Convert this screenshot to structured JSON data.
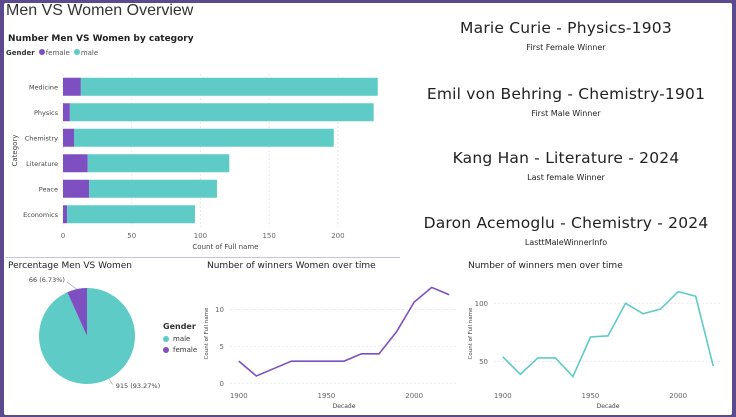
{
  "dashboard": {
    "title": "Men VS Women Overview"
  },
  "colors": {
    "female": "#7e4fc0",
    "male": "#5fcbc6",
    "background": "#5b4a8e"
  },
  "kpis": [
    {
      "value": "Marie Curie - Physics-1903",
      "label": "First Female Winner"
    },
    {
      "value": "Emil von Behring - Chemistry-1901",
      "label": "First Male Winner"
    },
    {
      "value": "Kang Han - Literature - 2024",
      "label": "Last female Winner"
    },
    {
      "value": "Daron Acemoglu - Chemistry - 2024",
      "label": "LasttMaleWinnerInfo"
    }
  ],
  "chart_data": [
    {
      "type": "bar",
      "orientation": "horizontal",
      "stacked": true,
      "title": "Number Men VS Women by category",
      "legend_title": "Gender",
      "legend_position": "top-left",
      "categories": [
        "Medicine",
        "Physics",
        "Chemistry",
        "Literature",
        "Peace",
        "Economics"
      ],
      "series": [
        {
          "name": "female",
          "values": [
            13,
            5,
            8,
            18,
            19,
            3
          ]
        },
        {
          "name": "male",
          "values": [
            216,
            221,
            189,
            103,
            93,
            93
          ]
        }
      ],
      "xlabel": "Count of Full name",
      "ylabel": "Category",
      "xlim": [
        0,
        235
      ],
      "xticks": [
        0,
        50,
        100,
        150,
        200
      ],
      "grid": true
    },
    {
      "type": "pie",
      "title": "Percentage Men VS Women",
      "legend_title": "Gender",
      "legend_position": "right",
      "slices": [
        {
          "name": "male",
          "value": 915,
          "label": "915 (93.27%)"
        },
        {
          "name": "female",
          "value": 66,
          "label": "66 (6.73%)"
        }
      ]
    },
    {
      "type": "line",
      "title": "Number of winners Women over time",
      "xlabel": "Decade",
      "ylabel": "Count of Full name",
      "x": [
        1900,
        1910,
        1920,
        1930,
        1940,
        1950,
        1960,
        1970,
        1980,
        1990,
        2000,
        2010,
        2020
      ],
      "series": [
        {
          "values": [
            3,
            1,
            2,
            3,
            3,
            3,
            3,
            4,
            4,
            7,
            11,
            13,
            12
          ]
        }
      ],
      "xticks": [
        1900,
        1950,
        2000
      ],
      "yticks": [
        0,
        5,
        10
      ],
      "ylim": [
        -0.5,
        14
      ]
    },
    {
      "type": "line",
      "title": "Number of winners men over time",
      "xlabel": "Decade",
      "ylabel": "Count of Full name",
      "x": [
        1900,
        1910,
        1920,
        1930,
        1940,
        1950,
        1960,
        1970,
        1980,
        1990,
        2000,
        2010,
        2020
      ],
      "series": [
        {
          "values": [
            54,
            39,
            53,
            53,
            37,
            71,
            72,
            100,
            91,
            95,
            110,
            106,
            46
          ]
        }
      ],
      "xticks": [
        1900,
        1950,
        2000
      ],
      "yticks": [
        50,
        100
      ],
      "ylim": [
        28,
        120
      ]
    }
  ]
}
